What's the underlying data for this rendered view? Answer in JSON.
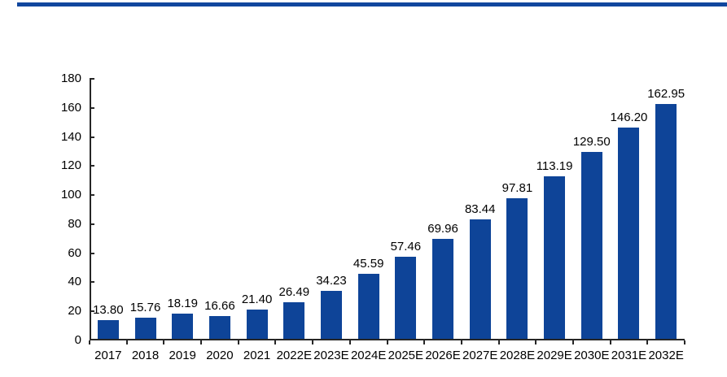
{
  "page": {
    "accent_rule_color": "#11479E"
  },
  "chart_data": {
    "type": "bar",
    "title": "",
    "xlabel": "",
    "ylabel": "",
    "categories": [
      "2017",
      "2018",
      "2019",
      "2020",
      "2021",
      "2022E",
      "2023E",
      "2024E",
      "2025E",
      "2026E",
      "2027E",
      "2028E",
      "2029E",
      "2030E",
      "2031E",
      "2032E"
    ],
    "values": [
      13.8,
      15.76,
      18.19,
      16.66,
      21.4,
      26.49,
      34.23,
      45.59,
      57.46,
      69.96,
      83.44,
      97.81,
      113.19,
      129.5,
      146.2,
      162.95
    ],
    "value_labels": [
      "13.80",
      "15.76",
      "18.19",
      "16.66",
      "21.40",
      "26.49",
      "34.23",
      "45.59",
      "57.46",
      "69.96",
      "83.44",
      "97.81",
      "113.19",
      "129.50",
      "146.20",
      "162.95"
    ],
    "ylim": [
      0,
      180
    ],
    "yticks": [
      0,
      20,
      40,
      60,
      80,
      100,
      120,
      140,
      160,
      180
    ],
    "bar_color": "#0E4498",
    "axis_color": "#262626",
    "grid": false,
    "legend_position": "none"
  }
}
